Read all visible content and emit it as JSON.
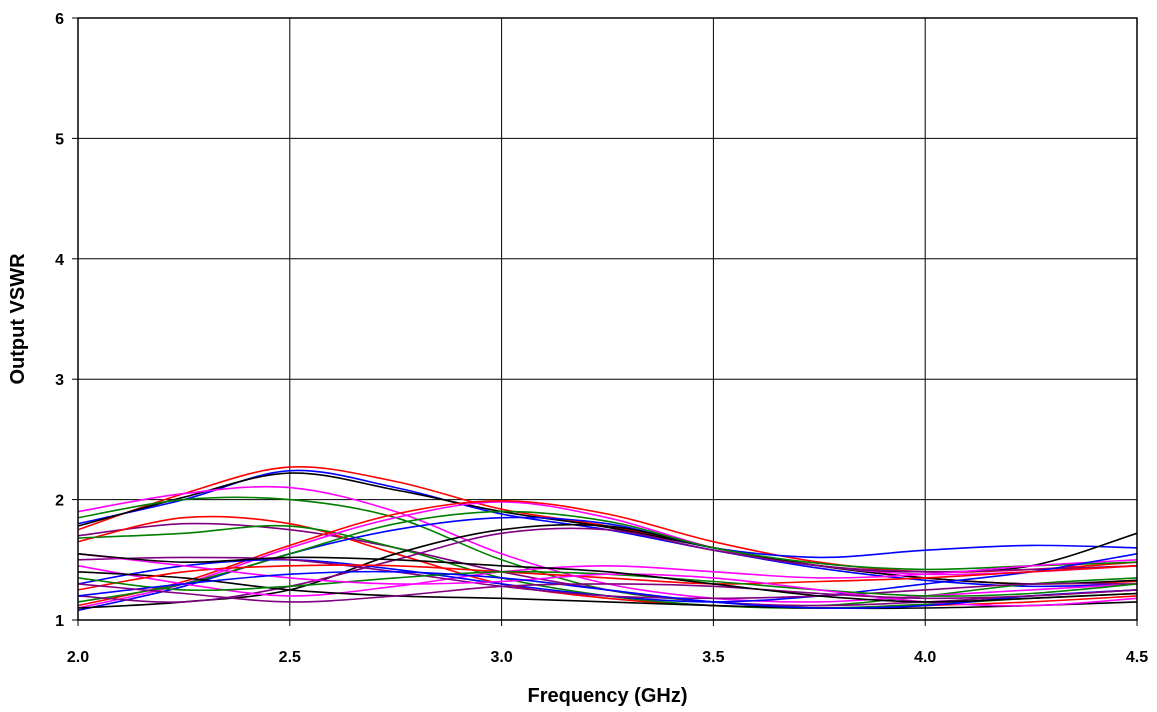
{
  "chart_data": {
    "type": "line",
    "xlabel": "Frequency (GHz)",
    "ylabel": "Output VSWR",
    "xlim": [
      2.0,
      4.5
    ],
    "ylim": [
      1,
      6
    ],
    "x_ticks": [
      "2.0",
      "2.5",
      "3.0",
      "3.5",
      "4.0",
      "4.5"
    ],
    "y_ticks": [
      "1",
      "2",
      "3",
      "4",
      "5",
      "6"
    ],
    "grid": true,
    "legend": "none",
    "x": [
      2.0,
      2.25,
      2.5,
      2.75,
      3.0,
      3.25,
      3.5,
      3.75,
      4.0,
      4.25,
      4.5
    ],
    "series": [
      {
        "color": "#ff0000",
        "values": [
          1.75,
          2.05,
          2.27,
          2.15,
          1.92,
          1.78,
          1.6,
          1.45,
          1.35,
          1.3,
          1.32
        ]
      },
      {
        "color": "#0000ff",
        "values": [
          1.8,
          2.0,
          2.24,
          2.1,
          1.88,
          1.75,
          1.58,
          1.43,
          1.33,
          1.28,
          1.3
        ]
      },
      {
        "color": "#000000",
        "values": [
          1.78,
          2.02,
          2.22,
          2.08,
          1.9,
          1.77,
          1.6,
          1.45,
          1.35,
          1.3,
          1.33
        ]
      },
      {
        "color": "#008000",
        "values": [
          1.85,
          2.0,
          2.0,
          1.85,
          1.5,
          1.25,
          1.15,
          1.12,
          1.2,
          1.3,
          1.35
        ]
      },
      {
        "color": "#ff00ff",
        "values": [
          1.9,
          2.05,
          2.1,
          1.9,
          1.55,
          1.3,
          1.18,
          1.15,
          1.2,
          1.25,
          1.3
        ]
      },
      {
        "color": "#800080",
        "values": [
          1.7,
          1.8,
          1.75,
          1.6,
          1.4,
          1.25,
          1.15,
          1.12,
          1.15,
          1.2,
          1.25
        ]
      },
      {
        "color": "#ff0000",
        "values": [
          1.65,
          1.85,
          1.8,
          1.55,
          1.3,
          1.18,
          1.12,
          1.1,
          1.12,
          1.15,
          1.2
        ]
      },
      {
        "color": "#008000",
        "values": [
          1.68,
          1.72,
          1.78,
          1.6,
          1.35,
          1.2,
          1.12,
          1.1,
          1.13,
          1.18,
          1.22
        ]
      },
      {
        "color": "#ff00ff",
        "values": [
          1.1,
          1.3,
          1.6,
          1.85,
          1.98,
          1.85,
          1.6,
          1.45,
          1.38,
          1.4,
          1.45
        ]
      },
      {
        "color": "#ff0000",
        "values": [
          1.12,
          1.32,
          1.62,
          1.88,
          1.99,
          1.88,
          1.65,
          1.48,
          1.4,
          1.42,
          1.48
        ]
      },
      {
        "color": "#0000ff",
        "values": [
          1.08,
          1.28,
          1.55,
          1.75,
          1.85,
          1.8,
          1.6,
          1.52,
          1.58,
          1.62,
          1.6
        ]
      },
      {
        "color": "#000000",
        "values": [
          1.1,
          1.15,
          1.25,
          1.55,
          1.75,
          1.78,
          1.6,
          1.45,
          1.4,
          1.45,
          1.72
        ]
      },
      {
        "color": "#008000",
        "values": [
          1.15,
          1.3,
          1.55,
          1.8,
          1.9,
          1.82,
          1.6,
          1.47,
          1.42,
          1.45,
          1.48
        ]
      },
      {
        "color": "#800080",
        "values": [
          1.2,
          1.15,
          1.28,
          1.5,
          1.72,
          1.75,
          1.58,
          1.45,
          1.4,
          1.42,
          1.45
        ]
      },
      {
        "color": "#ff00ff",
        "values": [
          1.45,
          1.3,
          1.2,
          1.28,
          1.4,
          1.45,
          1.4,
          1.35,
          1.38,
          1.45,
          1.5
        ]
      },
      {
        "color": "#0000ff",
        "values": [
          1.3,
          1.45,
          1.5,
          1.42,
          1.3,
          1.2,
          1.15,
          1.2,
          1.3,
          1.4,
          1.55
        ]
      },
      {
        "color": "#800080",
        "values": [
          1.5,
          1.52,
          1.5,
          1.4,
          1.28,
          1.2,
          1.18,
          1.2,
          1.25,
          1.3,
          1.3
        ]
      },
      {
        "color": "#000000",
        "values": [
          1.4,
          1.35,
          1.25,
          1.2,
          1.18,
          1.15,
          1.12,
          1.1,
          1.1,
          1.12,
          1.15
        ]
      },
      {
        "color": "#ff0000",
        "values": [
          1.25,
          1.4,
          1.45,
          1.45,
          1.4,
          1.35,
          1.3,
          1.32,
          1.35,
          1.4,
          1.45
        ]
      },
      {
        "color": "#008000",
        "values": [
          1.35,
          1.25,
          1.28,
          1.35,
          1.4,
          1.38,
          1.32,
          1.25,
          1.2,
          1.22,
          1.3
        ]
      },
      {
        "color": "#ff00ff",
        "values": [
          1.55,
          1.45,
          1.35,
          1.3,
          1.32,
          1.38,
          1.35,
          1.25,
          1.15,
          1.12,
          1.18
        ]
      },
      {
        "color": "#0000ff",
        "values": [
          1.2,
          1.3,
          1.38,
          1.4,
          1.35,
          1.25,
          1.15,
          1.1,
          1.12,
          1.2,
          1.25
        ]
      },
      {
        "color": "#800080",
        "values": [
          1.3,
          1.22,
          1.15,
          1.2,
          1.28,
          1.3,
          1.28,
          1.22,
          1.18,
          1.2,
          1.25
        ]
      },
      {
        "color": "#000000",
        "values": [
          1.55,
          1.48,
          1.52,
          1.5,
          1.45,
          1.4,
          1.3,
          1.2,
          1.15,
          1.18,
          1.22
        ]
      }
    ]
  }
}
